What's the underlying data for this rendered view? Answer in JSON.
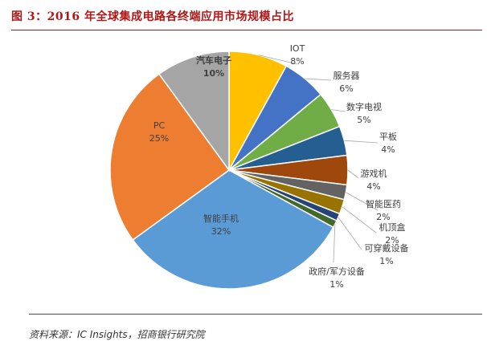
{
  "figure": {
    "title": "图 3：2016 年全球集成电路各终端应用市场规模占比",
    "source": "资料来源：IC Insights，招商银行研究院"
  },
  "chart_data": {
    "type": "pie",
    "title": "",
    "start": "12 o'clock, clockwise",
    "slices": [
      {
        "label": "IOT",
        "value": 8,
        "value_label": "8%",
        "color": "#FFC000",
        "label_placement": "outside"
      },
      {
        "label": "服务器",
        "value": 6,
        "value_label": "6%",
        "color": "#4472C4",
        "label_placement": "outside"
      },
      {
        "label": "数字电视",
        "value": 5,
        "value_label": "5%",
        "color": "#70AD47",
        "label_placement": "outside"
      },
      {
        "label": "平板",
        "value": 4,
        "value_label": "4%",
        "color": "#255E91",
        "label_placement": "outside"
      },
      {
        "label": "游戏机",
        "value": 4,
        "value_label": "4%",
        "color": "#9E480E",
        "label_placement": "outside"
      },
      {
        "label": "智能医药",
        "value": 2,
        "value_label": "2%",
        "color": "#636363",
        "label_placement": "outside"
      },
      {
        "label": "机顶盒",
        "value": 2,
        "value_label": "2%",
        "color": "#997300",
        "label_placement": "outside"
      },
      {
        "label": "可穿戴设备",
        "value": 1,
        "value_label": "1%",
        "color": "#264478",
        "label_placement": "outside"
      },
      {
        "label": "政府/军方设备",
        "value": 1,
        "value_label": "1%",
        "color": "#43682B",
        "label_placement": "outside"
      },
      {
        "label": "智能手机",
        "value": 32,
        "value_label": "32%",
        "color": "#5B9BD5",
        "label_placement": "inside"
      },
      {
        "label": "PC",
        "value": 25,
        "value_label": "25%",
        "color": "#ED7D31",
        "label_placement": "inside"
      },
      {
        "label": "汽车电子",
        "value": 10,
        "value_label": "10%",
        "color": "#A5A5A5",
        "label_placement": "inside",
        "bold": true
      }
    ]
  }
}
